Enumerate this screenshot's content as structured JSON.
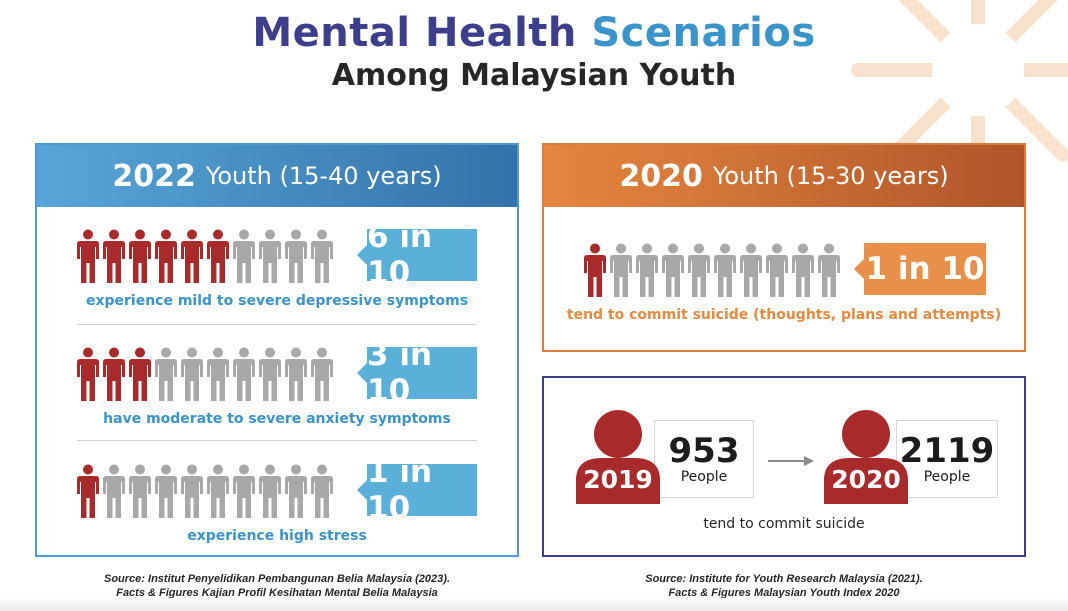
{
  "title": {
    "line1_a": "Mental Health ",
    "line1_b": "Scenarios",
    "line2": "Among Malaysian Youth"
  },
  "colors": {
    "dark_purple": "#3d3e8c",
    "blue": "#3a93c9",
    "red": "#a82a2a",
    "grey": "#a8a8a8",
    "orange": "#e89049"
  },
  "left_panel": {
    "year": "2022",
    "range": "Youth (15-40 years)",
    "rows": [
      {
        "filled": 6,
        "total": 10,
        "ratio": "6 in 10",
        "caption": "experience mild to severe depressive symptoms"
      },
      {
        "filled": 3,
        "total": 10,
        "ratio": "3 in 10",
        "caption": "have moderate to severe anxiety symptoms"
      },
      {
        "filled": 1,
        "total": 10,
        "ratio": "1 in 10",
        "caption": "experience high stress"
      }
    ],
    "source_line1": "Source: Institut Penyelidikan Pembangunan Belia Malaysia (2023).",
    "source_line2": "Facts & Figures Kajian Profil Kesihatan Mental Belia Malaysia"
  },
  "right_panel_top": {
    "year": "2020",
    "range": "Youth (15-30 years)",
    "filled": 1,
    "total": 10,
    "ratio": "1 in 10",
    "caption": "tend to commit suicide (thoughts, plans and attempts)"
  },
  "right_panel_bottom": {
    "left": {
      "year": "2019",
      "value": "953",
      "unit": "People"
    },
    "right": {
      "year": "2020",
      "value": "2119",
      "unit": "People"
    },
    "caption": "tend to commit suicide",
    "source_line1": "Source: Institute for Youth Research Malaysia (2021).",
    "source_line2": "Facts & Figures Malaysian Youth Index 2020"
  }
}
